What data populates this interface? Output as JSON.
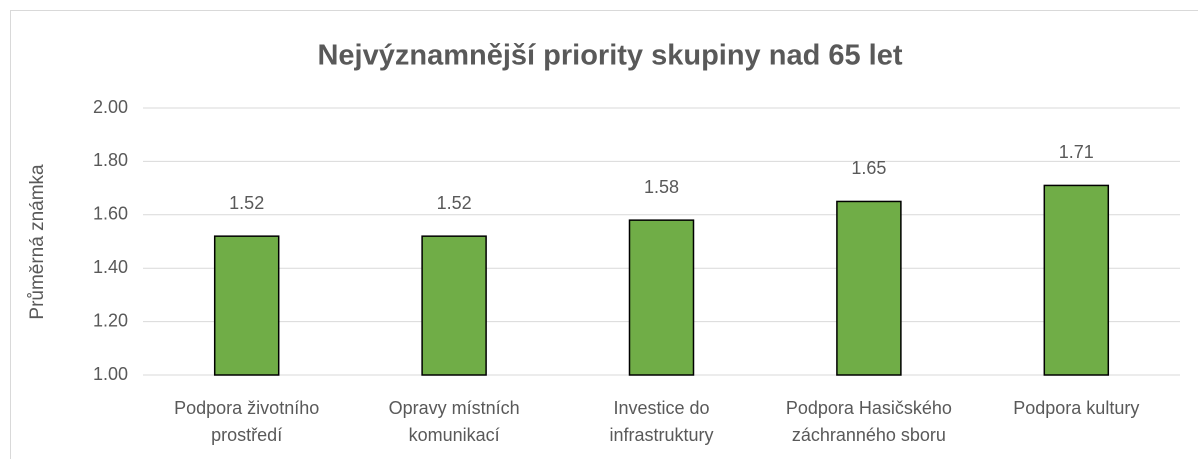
{
  "chart_data": {
    "type": "bar",
    "title": "Nejvýznamnější priority skupiny nad 65 let",
    "y_label": "Průměrná známka",
    "categories": [
      "Podpora životního prostředí",
      "Opravy místních komunikací",
      "Investice do infrastruktury",
      "Podpora Hasičského záchranného sboru",
      "Podpora kultury"
    ],
    "values": [
      1.52,
      1.52,
      1.58,
      1.65,
      1.71
    ],
    "color": "#70ad47",
    "ylim": [
      1,
      2
    ],
    "yticks": [
      {
        "value": 1,
        "label": "1.00"
      },
      {
        "value": 1.2,
        "label": "1.20"
      },
      {
        "value": 1.4,
        "label": "1.40"
      },
      {
        "value": 1.6,
        "label": "1.60"
      },
      {
        "value": 1.8,
        "label": "1.80"
      },
      {
        "value": 2,
        "label": "2.00"
      }
    ],
    "grid": true
  }
}
